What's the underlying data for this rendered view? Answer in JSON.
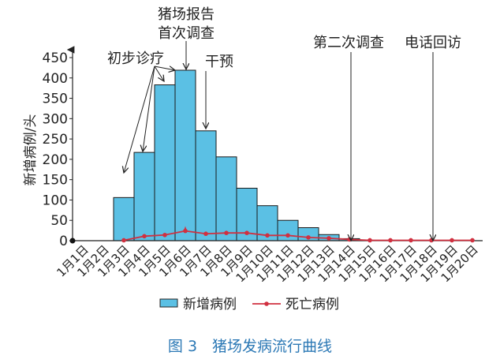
{
  "chart_data": {
    "type": "bar",
    "ylabel": "新增病例/头",
    "ylim": [
      0,
      450
    ],
    "yticks": [
      0,
      50,
      100,
      150,
      200,
      250,
      300,
      350,
      400,
      450
    ],
    "categories": [
      "1月1日",
      "1月2日",
      "1月3日",
      "1月4日",
      "1月5日",
      "1月6日",
      "1月7日",
      "1月8日",
      "1月9日",
      "1月10日",
      "1月11日",
      "1月12日",
      "1月13日",
      "1月14日",
      "1月15日",
      "1月16日",
      "1月17日",
      "1月18日",
      "1月19日",
      "1月20日"
    ],
    "series": [
      {
        "name": "新增病例",
        "type": "bar",
        "color": "#5bc0e4",
        "values": [
          0,
          0,
          106,
          217,
          383,
          419,
          270,
          206,
          129,
          86,
          50,
          32,
          15,
          5,
          0,
          0,
          0,
          0,
          0,
          0
        ]
      },
      {
        "name": "死亡病例",
        "type": "line",
        "color": "#d03040",
        "values": [
          null,
          null,
          1,
          11,
          14,
          24,
          17,
          19,
          19,
          13,
          13,
          8,
          6,
          3,
          1,
          1,
          1,
          1,
          1,
          1
        ]
      }
    ],
    "legend": "bottom",
    "annotations": [
      {
        "text": "初步诊疗",
        "dates": [
          "1月3日",
          "1月4日",
          "1月5日",
          "1月6日"
        ]
      },
      {
        "text": "猪场报告\n首次调查",
        "dates": [
          "1月6日"
        ]
      },
      {
        "text": "干预",
        "dates": [
          "1月7日"
        ]
      },
      {
        "text": "第二次调查",
        "dates": [
          "1月14日"
        ]
      },
      {
        "text": "电话回访",
        "dates": [
          "1月18日"
        ]
      }
    ]
  },
  "caption": "图 3　猪场发病流行曲线"
}
